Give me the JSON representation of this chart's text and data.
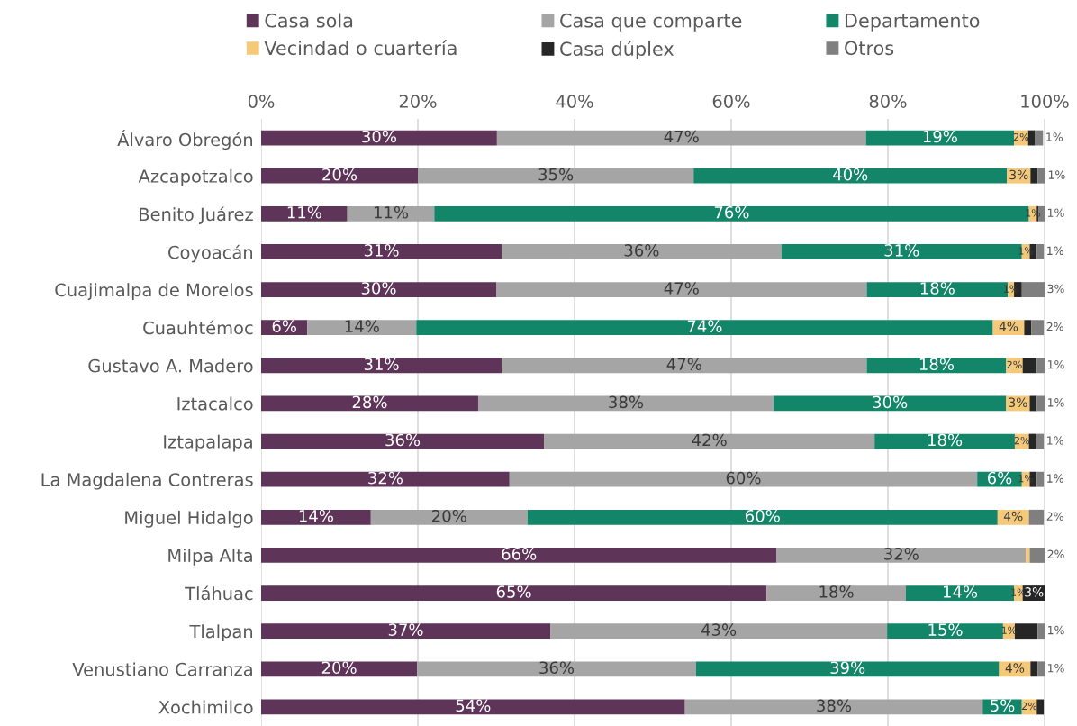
{
  "chart_data": {
    "type": "bar",
    "orientation": "horizontal",
    "stacked": true,
    "categories": [
      "Álvaro Obregón",
      "Azcapotzalco",
      "Benito Juárez",
      "Coyoacán",
      "Cuajimalpa de Morelos",
      "Cuauhtémoc",
      "Gustavo A. Madero",
      "Iztacalco",
      "Iztapalapa",
      "La Magdalena Contreras",
      "Miguel Hidalgo",
      "Milpa Alta",
      "Tláhuac",
      "Tlalpan",
      "Venustiano Carranza",
      "Xochimilco"
    ],
    "series": [
      {
        "name": "Casa sola",
        "color": "#5e3459",
        "values": [
          30.1,
          20.0,
          11.0,
          30.7,
          30.0,
          5.9,
          30.7,
          27.7,
          36.1,
          31.7,
          14.0,
          65.8,
          64.5,
          36.9,
          19.9,
          54.1
        ],
        "value_labels": [
          "30%",
          "20%",
          "11%",
          "31%",
          "30%",
          "6%",
          "31%",
          "28%",
          "36%",
          "32%",
          "14%",
          "66%",
          "65%",
          "37%",
          "20%",
          "54%"
        ]
      },
      {
        "name": "Casa que comparte",
        "color": "#a5a5a5",
        "values": [
          47.1,
          35.2,
          11.1,
          35.7,
          47.3,
          13.9,
          46.6,
          37.7,
          42.2,
          59.7,
          20.0,
          31.8,
          17.8,
          43.0,
          35.6,
          38.0
        ],
        "value_labels": [
          "47%",
          "35%",
          "11%",
          "36%",
          "47%",
          "14%",
          "47%",
          "38%",
          "42%",
          "60%",
          "20%",
          "32%",
          "18%",
          "43%",
          "36%",
          "38%"
        ]
      },
      {
        "name": "Departamento",
        "color": "#138569",
        "values": [
          18.9,
          40.0,
          75.9,
          30.7,
          18.0,
          73.6,
          17.8,
          29.7,
          17.9,
          5.7,
          60.0,
          0,
          13.8,
          14.8,
          38.7,
          5.0
        ],
        "value_labels": [
          "19%",
          "40%",
          "76%",
          "31%",
          "18%",
          "74%",
          "18%",
          "30%",
          "18%",
          "6%",
          "60%",
          null,
          "14%",
          "15%",
          "39%",
          "5%"
        ]
      },
      {
        "name": "Vecindad o cuartería",
        "color": "#f5c97a",
        "values": [
          1.8,
          3.0,
          1.0,
          1.0,
          0.8,
          4.0,
          2.1,
          3.0,
          1.8,
          1.0,
          4.0,
          0.5,
          1.1,
          1.5,
          4.0,
          1.9
        ],
        "value_labels": [
          "2%",
          "3%",
          "1%",
          "1%",
          "1%",
          "4%",
          "2%",
          "3%",
          "2%",
          "1%",
          "4%",
          null,
          "1%",
          "1%",
          "4%",
          "2%"
        ]
      },
      {
        "name": "Casa dúplex",
        "color": "#262626",
        "values": [
          0.9,
          0.9,
          0.2,
          0.9,
          1.0,
          0.9,
          1.8,
          0.9,
          0.9,
          0.9,
          0,
          0,
          2.9,
          2.9,
          0.9,
          0.9
        ],
        "value_labels": [
          null,
          null,
          null,
          null,
          null,
          null,
          null,
          null,
          null,
          null,
          null,
          null,
          "3%",
          null,
          null,
          null
        ]
      },
      {
        "name": "Otros",
        "color": "#7f7f7f",
        "values": [
          1.0,
          1.0,
          0.8,
          0.9,
          2.9,
          1.6,
          1.0,
          1.0,
          1.0,
          0.9,
          1.9,
          1.9,
          0,
          0.9,
          0.9,
          0
        ],
        "value_labels": [
          "1%",
          "1%",
          "1%",
          "1%",
          "3%",
          "2%",
          "1%",
          "1%",
          "1%",
          "1%",
          "2%",
          "2%",
          null,
          "1%",
          "1%",
          null
        ]
      }
    ],
    "xlim": [
      0,
      100
    ],
    "xticks": [
      {
        "value": 0,
        "label": "0%"
      },
      {
        "value": 20,
        "label": "20%"
      },
      {
        "value": 40,
        "label": "40%"
      },
      {
        "value": 60,
        "label": "60%"
      },
      {
        "value": 80,
        "label": "80%"
      },
      {
        "value": 100,
        "label": "100%"
      }
    ],
    "grid": "x",
    "legend": "top"
  }
}
